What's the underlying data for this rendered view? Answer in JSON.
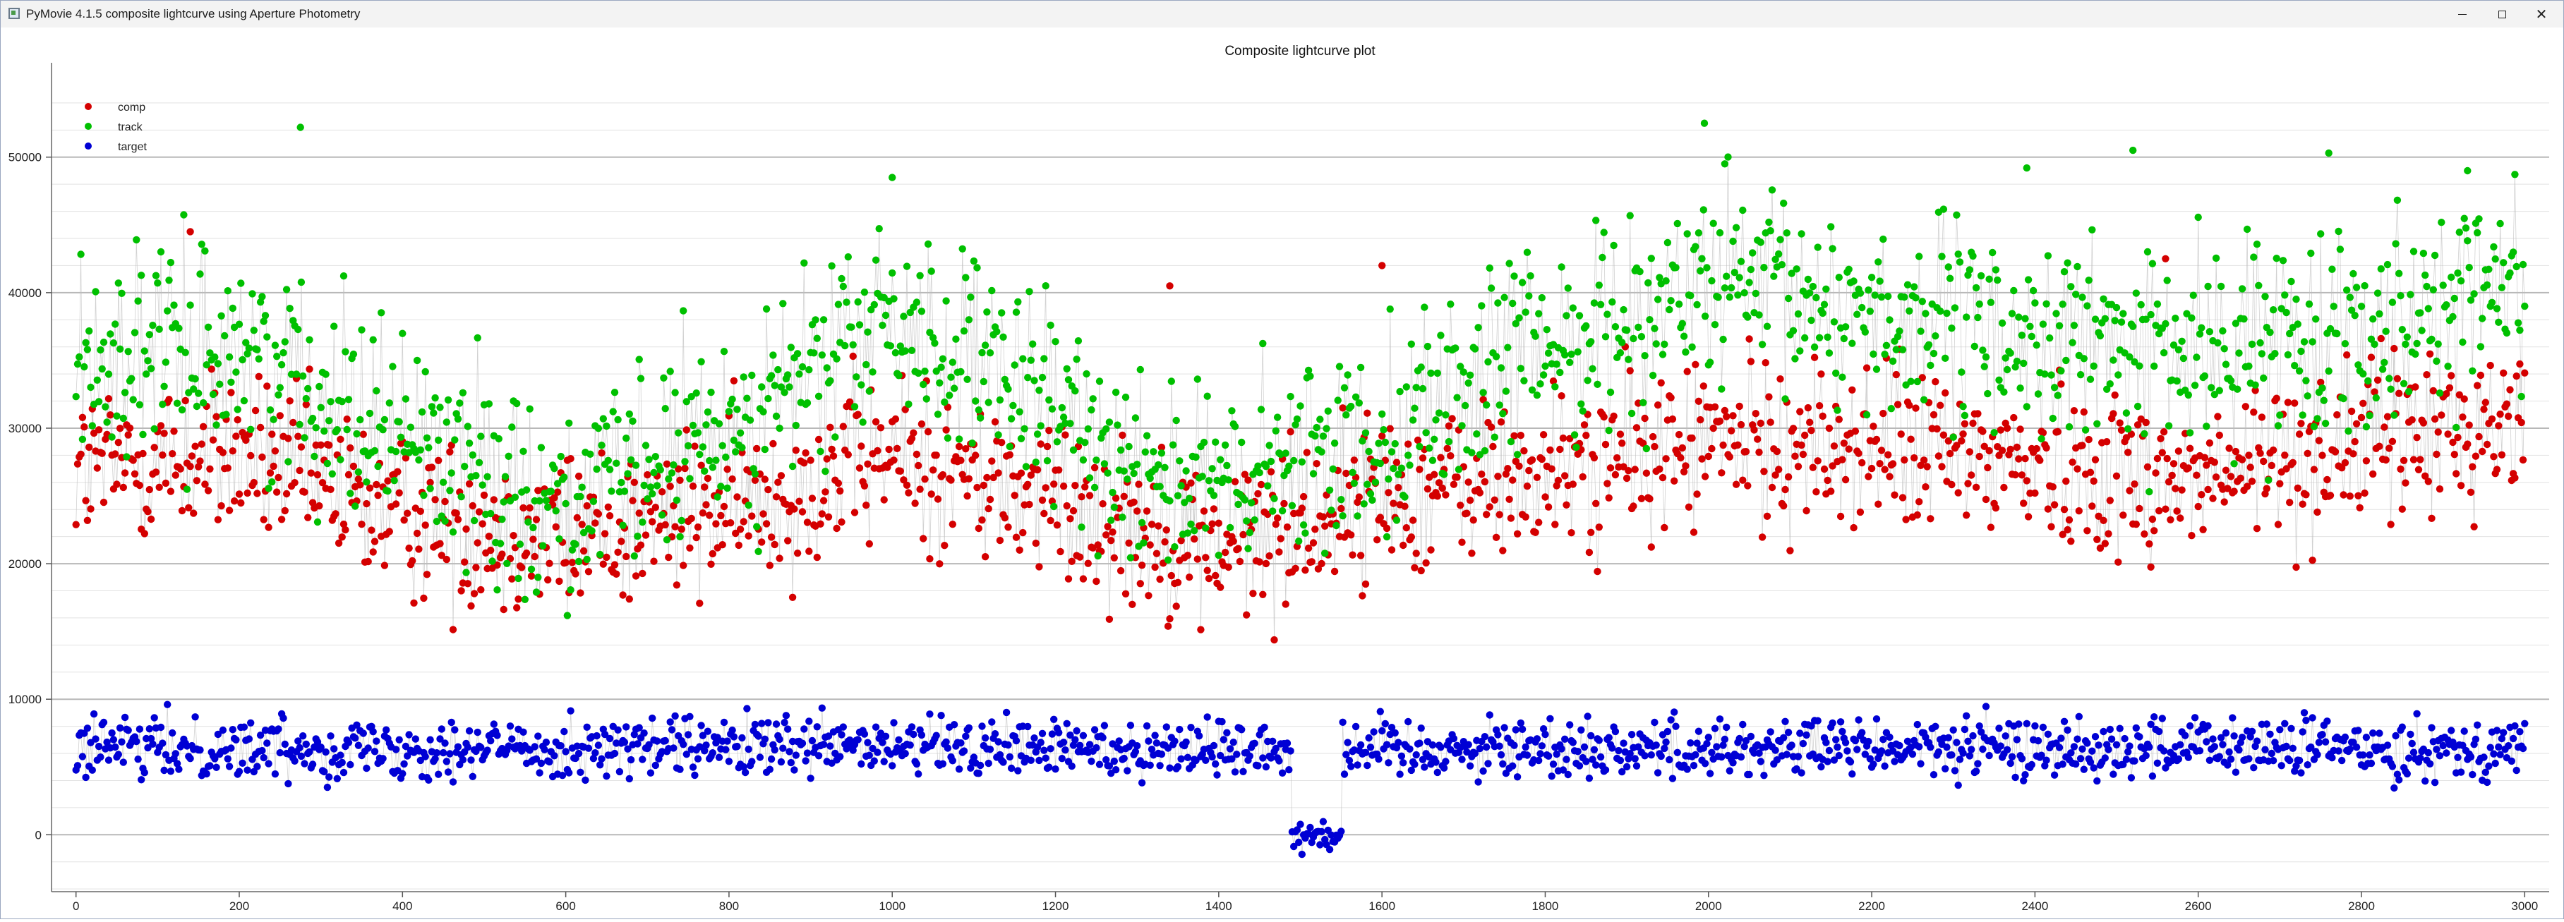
{
  "window": {
    "title": "PyMovie 4.1.5 composite lightcurve using Aperture Photometry",
    "app_icon": "pymovie-icon",
    "controls": {
      "minimize_icon": "minimize-icon",
      "maximize_icon": "maximize-icon",
      "close_icon": "close-icon"
    }
  },
  "chart_data": {
    "type": "scatter",
    "title": "Composite lightcurve plot",
    "xlabel": "",
    "ylabel": "",
    "xlim": [
      -30,
      3030
    ],
    "ylim": [
      -4200,
      55400
    ],
    "x_ticks": [
      0,
      200,
      400,
      600,
      800,
      1000,
      1200,
      1400,
      1600,
      1800,
      2000,
      2200,
      2400,
      2600,
      2800,
      3000
    ],
    "y_ticks": [
      0,
      10000,
      20000,
      30000,
      40000,
      50000
    ],
    "x_tick_labels": [
      "0",
      "200",
      "400",
      "600",
      "800",
      "1000",
      "1200",
      "1400",
      "1600",
      "1800",
      "2000",
      "2200",
      "2400",
      "2600",
      "2800",
      "3000"
    ],
    "y_tick_labels": [
      "0",
      "10000",
      "20000",
      "30000",
      "40000",
      "50000"
    ],
    "grid": true,
    "legend_position": "top-left",
    "connecting_lines": true,
    "series": [
      {
        "name": "comp",
        "color": "#d40000",
        "x_range": [
          0,
          3000
        ],
        "trend": [
          [
            0,
            27000
          ],
          [
            200,
            28000
          ],
          [
            400,
            23500
          ],
          [
            600,
            22000
          ],
          [
            800,
            24000
          ],
          [
            1000,
            28000
          ],
          [
            1200,
            24500
          ],
          [
            1400,
            21000
          ],
          [
            1600,
            25000
          ],
          [
            1800,
            26500
          ],
          [
            2000,
            29000
          ],
          [
            2200,
            28500
          ],
          [
            2400,
            27500
          ],
          [
            2600,
            26000
          ],
          [
            2800,
            29000
          ],
          [
            3000,
            30500
          ]
        ],
        "spread": 5500,
        "min_value": 11500,
        "max_value": 44500,
        "occasional_high_outliers": [
          [
            140,
            44500
          ],
          [
            1340,
            40500
          ],
          [
            1600,
            42000
          ],
          [
            2560,
            42500
          ]
        ]
      },
      {
        "name": "track",
        "color": "#00c000",
        "x_range": [
          0,
          3000
        ],
        "trend": [
          [
            0,
            35000
          ],
          [
            200,
            36000
          ],
          [
            400,
            30000
          ],
          [
            600,
            24000
          ],
          [
            800,
            30000
          ],
          [
            1000,
            38000
          ],
          [
            1200,
            31000
          ],
          [
            1400,
            25000
          ],
          [
            1600,
            30000
          ],
          [
            1800,
            36000
          ],
          [
            2000,
            40500
          ],
          [
            2200,
            38500
          ],
          [
            2400,
            36500
          ],
          [
            2600,
            35500
          ],
          [
            2800,
            38000
          ],
          [
            3000,
            41000
          ]
        ],
        "spread": 6500,
        "min_value": 11500,
        "max_value": 52500,
        "peak_outliers": [
          [
            275,
            52200
          ],
          [
            1000,
            48500
          ],
          [
            1995,
            52500
          ],
          [
            2020,
            49500
          ],
          [
            2760,
            50300
          ],
          [
            2520,
            50500
          ],
          [
            2390,
            49200
          ],
          [
            2930,
            49000
          ]
        ]
      },
      {
        "name": "target",
        "color": "#0000d4",
        "x_range": [
          0,
          3000
        ],
        "mean": 6400,
        "spread": 2000,
        "min_value": -1800,
        "max_value": 10200,
        "occultation": {
          "start": 1490,
          "end": 1550,
          "level": 0,
          "spread": 900
        }
      }
    ]
  }
}
